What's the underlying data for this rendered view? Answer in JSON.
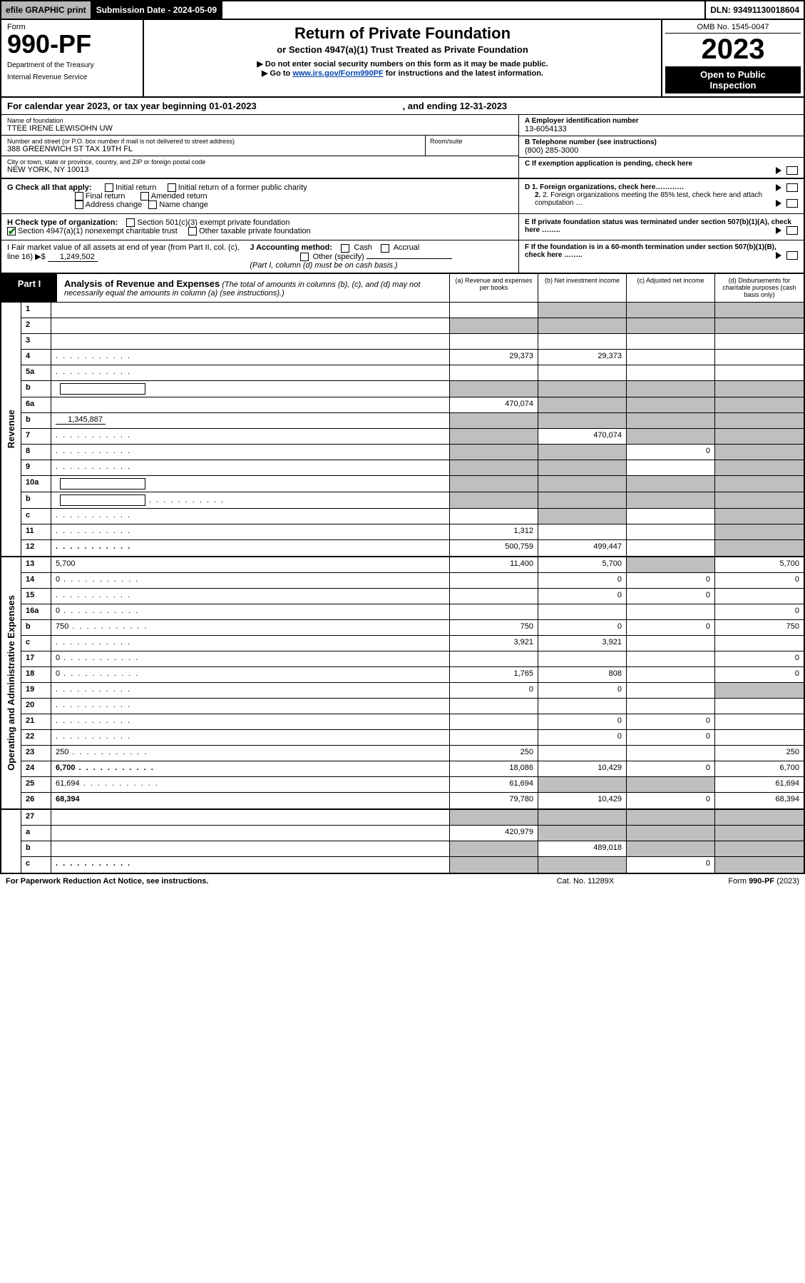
{
  "topbar": {
    "efile": "efile GRAPHIC print",
    "submission": "Submission Date - 2024-05-09",
    "dln": "DLN: 93491130018604"
  },
  "header": {
    "form_label": "Form",
    "form_number": "990-PF",
    "dept1": "Department of the Treasury",
    "dept2": "Internal Revenue Service",
    "title": "Return of Private Foundation",
    "subtitle": "or Section 4947(a)(1) Trust Treated as Private Foundation",
    "instr1": "▶ Do not enter social security numbers on this form as it may be made public.",
    "instr2_pre": "▶ Go to ",
    "instr2_link": "www.irs.gov/Form990PF",
    "instr2_post": " for instructions and the latest information.",
    "omb": "OMB No. 1545-0047",
    "year": "2023",
    "inspect1": "Open to Public",
    "inspect2": "Inspection"
  },
  "cal": {
    "label": "For calendar year 2023, or tax year beginning 01-01-2023",
    "end": ", and ending 12-31-2023"
  },
  "info": {
    "name_lbl": "Name of foundation",
    "name_val": "TTEE IRENE LEWISOHN UW",
    "addr_lbl": "Number and street (or P.O. box number if mail is not delivered to street address)",
    "addr_val": "388 GREENWICH ST TAX 19TH FL",
    "room_lbl": "Room/suite",
    "city_lbl": "City or town, state or province, country, and ZIP or foreign postal code",
    "city_val": "NEW YORK, NY  10013",
    "a_lbl": "A Employer identification number",
    "a_val": "13-6054133",
    "b_lbl": "B Telephone number (see instructions)",
    "b_val": "(800) 285-3000",
    "c_lbl": "C If exemption application is pending, check here"
  },
  "checks": {
    "g_lbl": "G Check all that apply:",
    "g1": "Initial return",
    "g2": "Initial return of a former public charity",
    "g3": "Final return",
    "g4": "Amended return",
    "g5": "Address change",
    "g6": "Name change",
    "h_lbl": "H Check type of organization:",
    "h1": "Section 501(c)(3) exempt private foundation",
    "h2": "Section 4947(a)(1) nonexempt charitable trust",
    "h3": "Other taxable private foundation",
    "d1": "D 1. Foreign organizations, check here…………",
    "d2": "2. Foreign organizations meeting the 85% test, check here and attach computation …",
    "e": "E  If private foundation status was terminated under section 507(b)(1)(A), check here ……..",
    "i_lbl": "I Fair market value of all assets at end of year (from Part II, col. (c), line 16) ▶$ ",
    "i_val": "1,249,502",
    "j_lbl": "J Accounting method:",
    "j1": "Cash",
    "j2": "Accrual",
    "j3": "Other (specify)",
    "j_note": "(Part I, column (d) must be on cash basis.)",
    "f": "F  If the foundation is in a 60-month termination under section 507(b)(1)(B), check here …….."
  },
  "part1": {
    "tab": "Part I",
    "title": "Analysis of Revenue and Expenses",
    "title_note": " (The total of amounts in columns (b), (c), and (d) may not necessarily equal the amounts in column (a) (see instructions).)",
    "col_a": "(a)   Revenue and expenses per books",
    "col_b": "(b)   Net investment income",
    "col_c": "(c)   Adjusted net income",
    "col_d": "(d)   Disbursements for charitable purposes (cash basis only)"
  },
  "side": {
    "rev": "Revenue",
    "exp": "Operating and Administrative Expenses"
  },
  "rows": {
    "r1": {
      "n": "1",
      "d": "",
      "a": "",
      "b": "",
      "c": "",
      "grey": [
        "b",
        "c",
        "d"
      ]
    },
    "r2": {
      "n": "2",
      "d": "",
      "a": "",
      "b": "",
      "c": "",
      "grey": [
        "a",
        "b",
        "c",
        "d"
      ],
      "allgrey": true,
      "bold_not": true
    },
    "r3": {
      "n": "3",
      "d": "",
      "a": "",
      "b": "",
      "c": ""
    },
    "r4": {
      "n": "4",
      "d": "",
      "a": "29,373",
      "b": "29,373",
      "c": "",
      "dots": true
    },
    "r5a": {
      "n": "5a",
      "d": "",
      "a": "",
      "b": "",
      "c": "",
      "dots": true
    },
    "r5b": {
      "n": "b",
      "d": "",
      "a": "",
      "b": "",
      "c": "",
      "grey": [
        "a",
        "b",
        "c",
        "d"
      ],
      "inner": true
    },
    "r6a": {
      "n": "6a",
      "d": "",
      "a": "470,074",
      "b": "",
      "c": "",
      "grey": [
        "b",
        "c",
        "d"
      ]
    },
    "r6b": {
      "n": "b",
      "d": "",
      "a": "",
      "b": "",
      "c": "",
      "grey": [
        "a",
        "b",
        "c",
        "d"
      ],
      "inline_val": "1,345,887"
    },
    "r7": {
      "n": "7",
      "d": "",
      "a": "",
      "b": "470,074",
      "c": "",
      "grey": [
        "a",
        "c",
        "d"
      ],
      "dots": true
    },
    "r8": {
      "n": "8",
      "d": "",
      "a": "",
      "b": "",
      "c": "0",
      "grey": [
        "a",
        "b",
        "d"
      ],
      "dots": true
    },
    "r9": {
      "n": "9",
      "d": "",
      "a": "",
      "b": "",
      "c": "",
      "grey": [
        "a",
        "b",
        "d"
      ],
      "dots": true
    },
    "r10a": {
      "n": "10a",
      "d": "",
      "a": "",
      "b": "",
      "c": "",
      "grey": [
        "a",
        "b",
        "c",
        "d"
      ],
      "inner": true
    },
    "r10b": {
      "n": "b",
      "d": "",
      "a": "",
      "b": "",
      "c": "",
      "grey": [
        "a",
        "b",
        "c",
        "d"
      ],
      "inner": true,
      "dots": true
    },
    "r10c": {
      "n": "c",
      "d": "",
      "a": "",
      "b": "",
      "c": "",
      "grey": [
        "b",
        "d"
      ],
      "dots": true
    },
    "r11": {
      "n": "11",
      "d": "",
      "a": "1,312",
      "b": "",
      "c": "",
      "grey": [
        "d"
      ],
      "dots": true
    },
    "r12": {
      "n": "12",
      "d": "",
      "a": "500,759",
      "b": "499,447",
      "c": "",
      "grey": [
        "d"
      ],
      "bold": true,
      "dots": true
    },
    "r13": {
      "n": "13",
      "d": "5,700",
      "a": "11,400",
      "b": "5,700",
      "c": "",
      "grey": [
        "c"
      ]
    },
    "r14": {
      "n": "14",
      "d": "0",
      "a": "",
      "b": "0",
      "c": "0",
      "dots": true
    },
    "r15": {
      "n": "15",
      "d": "",
      "a": "",
      "b": "0",
      "c": "0",
      "dots": true
    },
    "r16a": {
      "n": "16a",
      "d": "0",
      "a": "",
      "b": "",
      "c": "",
      "dots": true
    },
    "r16b": {
      "n": "b",
      "d": "750",
      "a": "750",
      "b": "0",
      "c": "0",
      "dots": true
    },
    "r16c": {
      "n": "c",
      "d": "",
      "a": "3,921",
      "b": "3,921",
      "c": "",
      "dots": true
    },
    "r17": {
      "n": "17",
      "d": "0",
      "a": "",
      "b": "",
      "c": "",
      "dots": true
    },
    "r18": {
      "n": "18",
      "d": "0",
      "a": "1,765",
      "b": "808",
      "c": "",
      "dots": true
    },
    "r19": {
      "n": "19",
      "d": "",
      "a": "0",
      "b": "0",
      "c": "",
      "grey": [
        "d"
      ],
      "dots": true
    },
    "r20": {
      "n": "20",
      "d": "",
      "a": "",
      "b": "",
      "c": "",
      "dots": true
    },
    "r21": {
      "n": "21",
      "d": "",
      "a": "",
      "b": "0",
      "c": "0",
      "dots": true
    },
    "r22": {
      "n": "22",
      "d": "",
      "a": "",
      "b": "0",
      "c": "0",
      "dots": true
    },
    "r23": {
      "n": "23",
      "d": "250",
      "a": "250",
      "b": "",
      "c": "",
      "dots": true
    },
    "r24": {
      "n": "24",
      "d": "6,700",
      "a": "18,086",
      "b": "10,429",
      "c": "0",
      "bold": true,
      "dots": true
    },
    "r25": {
      "n": "25",
      "d": "61,694",
      "a": "61,694",
      "b": "",
      "c": "",
      "grey": [
        "b",
        "c"
      ],
      "dots": true
    },
    "r26": {
      "n": "26",
      "d": "68,394",
      "a": "79,780",
      "b": "10,429",
      "c": "0",
      "bold": true
    },
    "r27": {
      "n": "27",
      "d": "",
      "a": "",
      "b": "",
      "c": "",
      "grey": [
        "a",
        "b",
        "c",
        "d"
      ]
    },
    "r27a": {
      "n": "a",
      "d": "",
      "a": "420,979",
      "b": "",
      "c": "",
      "grey": [
        "b",
        "c",
        "d"
      ],
      "bold": true
    },
    "r27b": {
      "n": "b",
      "d": "",
      "a": "",
      "b": "489,018",
      "c": "",
      "grey": [
        "a",
        "c",
        "d"
      ],
      "bold": true
    },
    "r27c": {
      "n": "c",
      "d": "",
      "a": "",
      "b": "",
      "c": "0",
      "grey": [
        "a",
        "b",
        "d"
      ],
      "bold": true,
      "dots": true
    }
  },
  "footer": {
    "left": "For Paperwork Reduction Act Notice, see instructions.",
    "mid": "Cat. No. 11289X",
    "right": "Form 990-PF (2023)"
  },
  "colors": {
    "grey": "#bfbfbf",
    "black": "#000000",
    "link": "#0645ad",
    "green": "#0a7a0a"
  }
}
